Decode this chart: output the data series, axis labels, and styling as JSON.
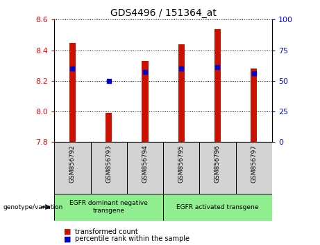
{
  "title": "GDS4496 / 151364_at",
  "categories": [
    "GSM856792",
    "GSM856793",
    "GSM856794",
    "GSM856795",
    "GSM856796",
    "GSM856797"
  ],
  "red_values": [
    8.45,
    7.99,
    8.33,
    8.44,
    8.54,
    8.28
  ],
  "blue_values": [
    8.28,
    8.2,
    8.26,
    8.28,
    8.29,
    8.25
  ],
  "ylim": [
    7.8,
    8.6
  ],
  "yticks_left": [
    7.8,
    8.0,
    8.2,
    8.4,
    8.6
  ],
  "yticks_right": [
    0,
    25,
    50,
    75,
    100
  ],
  "bar_color": "#cc1100",
  "dot_color": "#0000cc",
  "background_color": "#ffffff",
  "group1_label": "EGFR dominant negative\ntransgene",
  "group2_label": "EGFR activated transgene",
  "genotype_label": "genotype/variation",
  "legend_red": "transformed count",
  "legend_blue": "percentile rank within the sample",
  "group_bg_color": "#90ee90",
  "sample_bg_color": "#d3d3d3",
  "bar_width": 0.18
}
